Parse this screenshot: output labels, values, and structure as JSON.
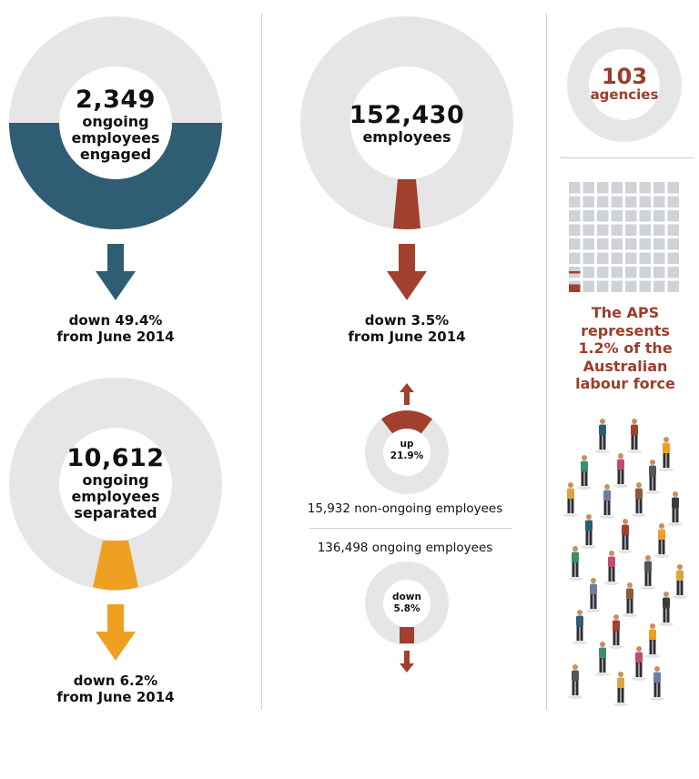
{
  "colors": {
    "ring": "#e6e6e6",
    "navy": "#2f5d73",
    "rust": "#a0402d",
    "orange": "#f0a020",
    "rust_text": "#9b3d2b"
  },
  "engaged": {
    "value": "2,349",
    "line1": "ongoing",
    "line2": "employees",
    "line3": "engaged",
    "change_line1": "down 49.4%",
    "change_line2": "from June 2014"
  },
  "separated": {
    "value": "10,612",
    "line1": "ongoing",
    "line2": "employees",
    "line3": "separated",
    "change_line1": "down 6.2%",
    "change_line2": "from June 2014"
  },
  "total": {
    "value": "152,430",
    "label": "employees",
    "change_line1": "down 3.5%",
    "change_line2": "from June 2014"
  },
  "non_ongoing": {
    "change_line1": "up",
    "change_line2": "21.9%",
    "label": "15,932 non-ongoing employees"
  },
  "ongoing": {
    "change_line1": "down",
    "change_line2": "5.8%",
    "label": "136,498 ongoing employees"
  },
  "agencies": {
    "value": "103",
    "label": "agencies"
  },
  "labour_force": {
    "line1": "The APS",
    "line2": "represents",
    "line3": "1.2% of the",
    "line4": "Australian",
    "line5": "labour force"
  },
  "chart_data": [
    {
      "type": "pie",
      "title": "ongoing employees engaged",
      "value": 2349,
      "fill_fraction": 0.5,
      "change_pct": -49.4,
      "compared_to": "June 2014",
      "color": "#2f5d73"
    },
    {
      "type": "pie",
      "title": "ongoing employees separated",
      "value": 10612,
      "fill_fraction": 0.062,
      "change_pct": -6.2,
      "compared_to": "June 2014",
      "color": "#f0a020"
    },
    {
      "type": "pie",
      "title": "employees",
      "value": 152430,
      "fill_fraction": 0.035,
      "change_pct": -3.5,
      "compared_to": "June 2014",
      "color": "#a0402d"
    },
    {
      "type": "pie",
      "title": "non-ongoing employees",
      "value": 15932,
      "fill_fraction": 0.219,
      "change_pct": 21.9,
      "color": "#a0402d"
    },
    {
      "type": "pie",
      "title": "ongoing employees",
      "value": 136498,
      "fill_fraction": 0.058,
      "change_pct": -5.8,
      "color": "#a0402d"
    },
    {
      "type": "heatmap",
      "title": "The APS represents 1.2% of the Australian labour force",
      "grid": [
        8,
        8
      ],
      "highlight_pct": 1.2,
      "color": "#a0402d"
    }
  ]
}
